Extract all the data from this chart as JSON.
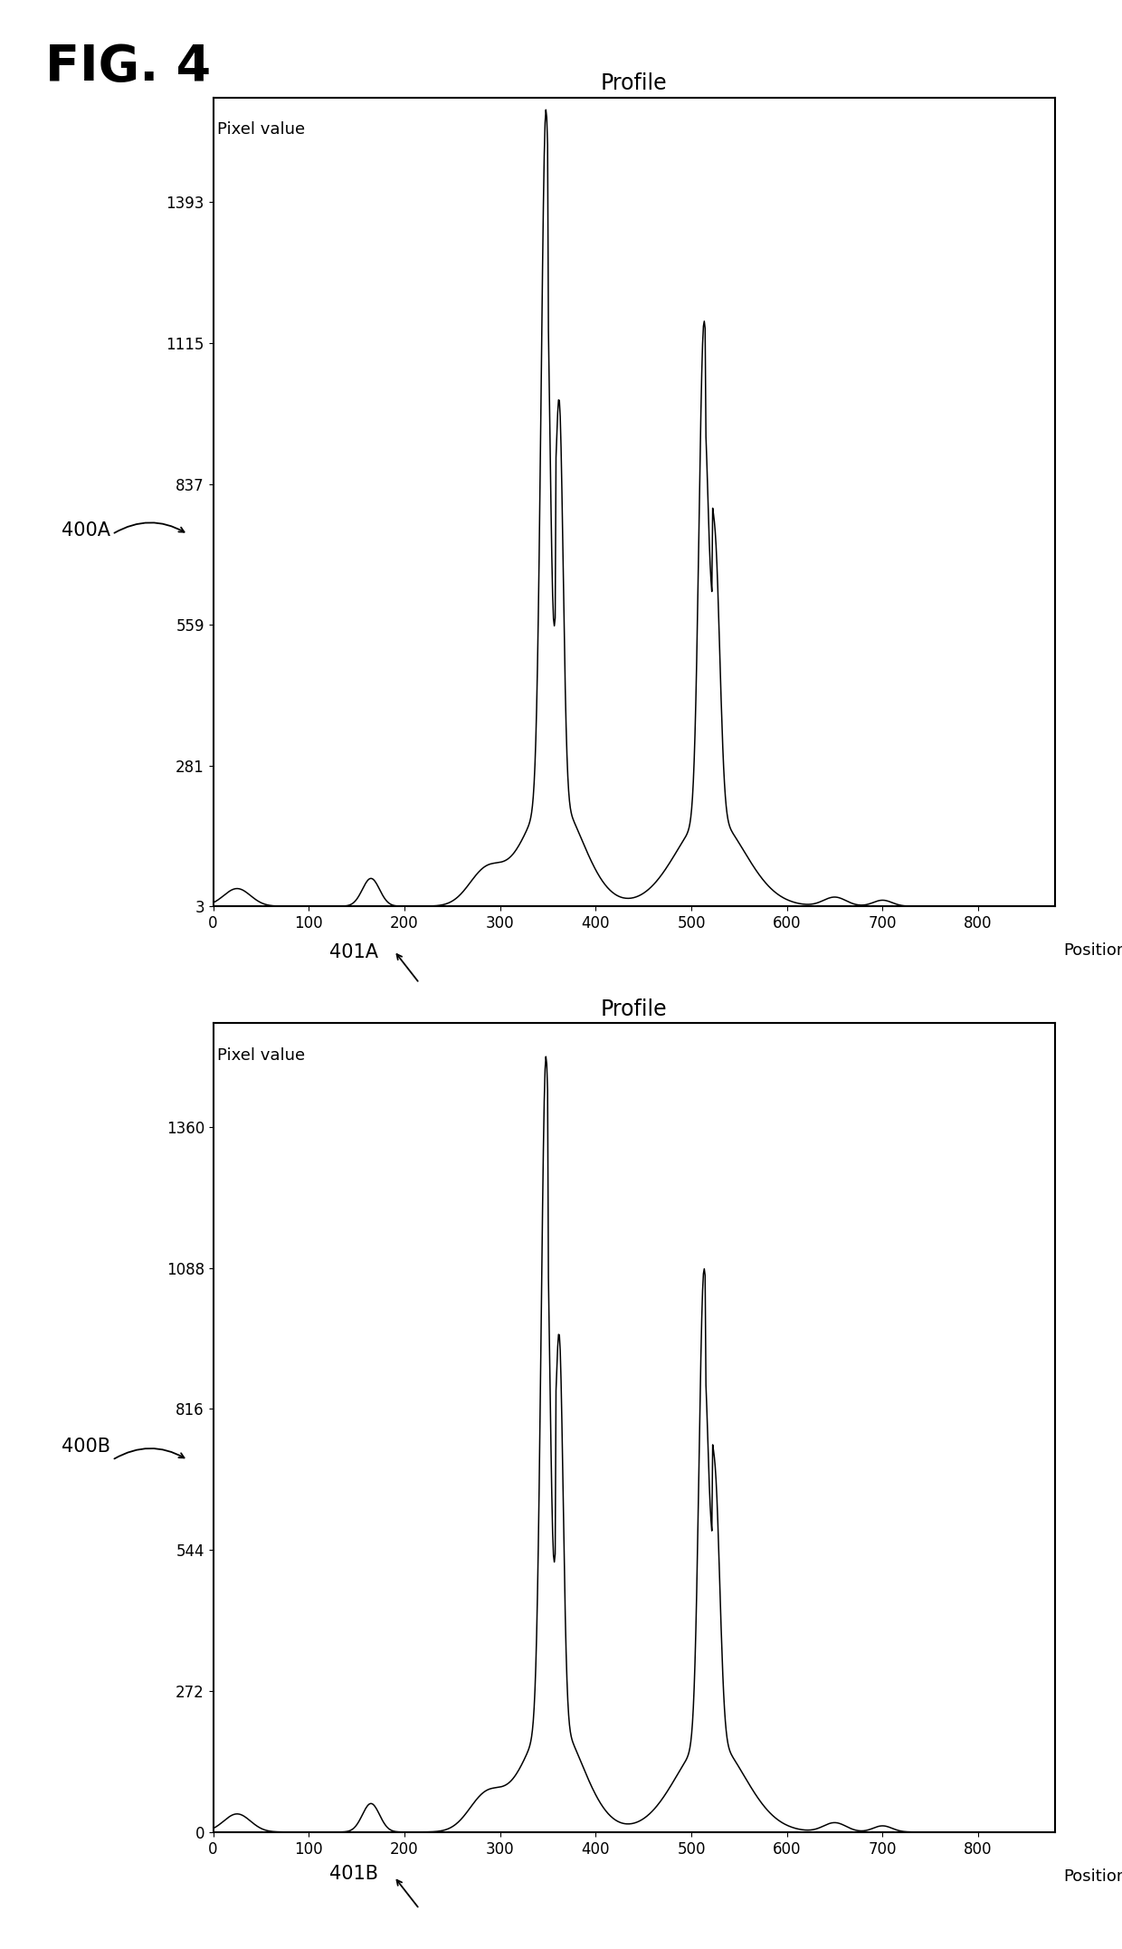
{
  "fig_title": "FIG. 4",
  "panel_a": {
    "title": "Profile",
    "ylabel": "Pixel value",
    "xlabel": "Position",
    "yticks": [
      3,
      281,
      559,
      837,
      1115,
      1393
    ],
    "xticks": [
      0,
      100,
      200,
      300,
      400,
      500,
      600,
      700,
      800
    ],
    "xlim": [
      0,
      880
    ],
    "ylim": [
      3,
      1600
    ],
    "label": "400A",
    "sublabel": "401A",
    "peak1_x": 348,
    "peak1_y": 1580,
    "peak2_x": 513,
    "peak2_y": 1130,
    "baseline": 3
  },
  "panel_b": {
    "title": "Profile",
    "ylabel": "Pixel value",
    "xlabel": "Position",
    "yticks": [
      0,
      272,
      544,
      816,
      1088,
      1360
    ],
    "xticks": [
      0,
      100,
      200,
      300,
      400,
      500,
      600,
      700,
      800
    ],
    "xlim": [
      0,
      880
    ],
    "ylim": [
      0,
      1560
    ],
    "label": "400B",
    "sublabel": "401B",
    "peak1_x": 348,
    "peak1_y": 1500,
    "peak2_x": 513,
    "peak2_y": 1060,
    "baseline": 0
  },
  "line_color": "#000000",
  "background_color": "#ffffff"
}
